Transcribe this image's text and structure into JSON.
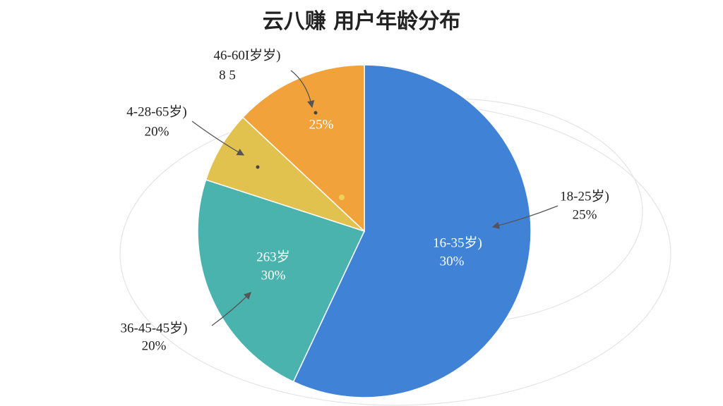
{
  "chart_data": {
    "type": "pie",
    "title": "云八赚 用户年龄分布",
    "categories": [
      null,
      null,
      null,
      null
    ],
    "values": [
      57,
      23,
      7,
      13
    ],
    "colors": [
      "#3f82d6",
      "#4ab3ae",
      "#e2c24f",
      "#f2a23a"
    ],
    "annotations": [
      "46-60I岁岁)",
      "8 5",
      "25%",
      "4-28-65岁)",
      "20%",
      "263岁",
      "30%",
      "36-45-45岁)",
      "20%",
      "18-25岁)",
      "25%",
      "16-35岁)",
      "30%"
    ]
  }
}
